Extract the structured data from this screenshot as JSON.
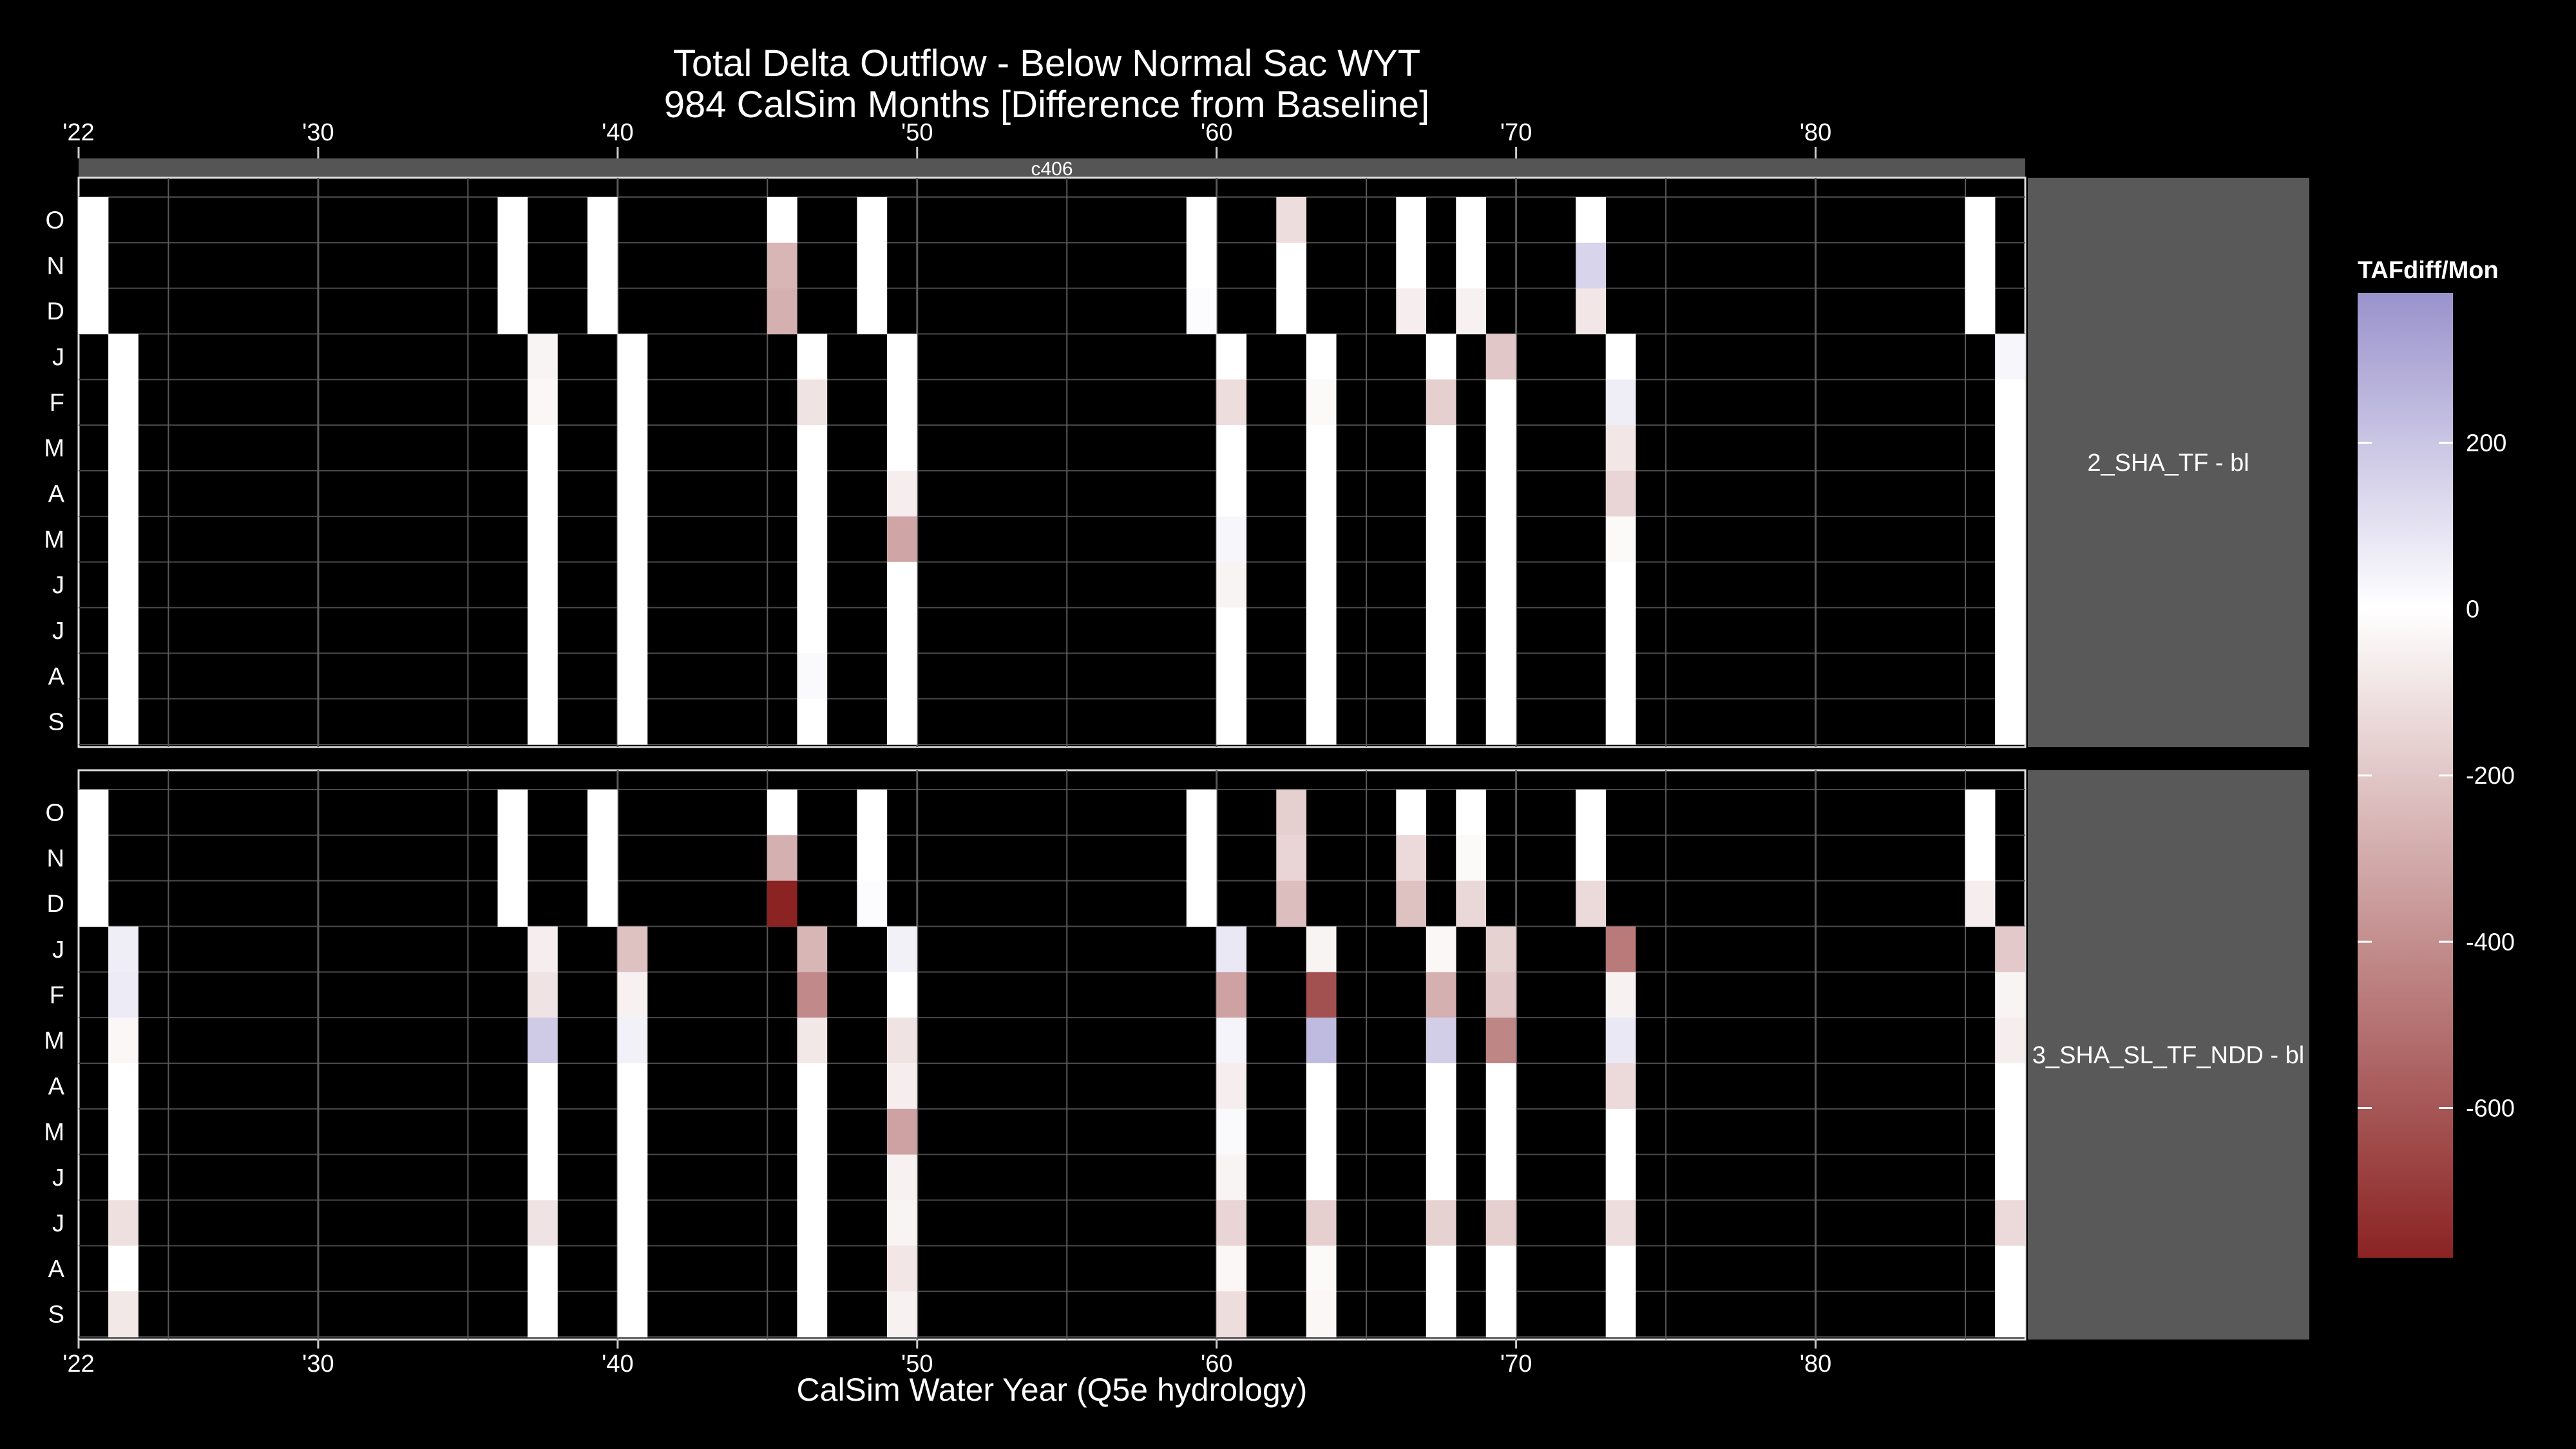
{
  "chart_data": {
    "type": "heatmap",
    "title": "Total Delta Outflow - Below Normal Sac WYT",
    "subtitle": "984 CalSim Months [Difference from Baseline]",
    "xlabel": "CalSim Water Year (Q5e hydrology)",
    "top_strip_label": "c406",
    "x_tick_labels": [
      "'22",
      "'30",
      "'40",
      "'50",
      "'60",
      "'70",
      "'80"
    ],
    "x_tick_years": [
      1922,
      1930,
      1940,
      1950,
      1960,
      1970,
      1980
    ],
    "xlim": [
      1922,
      1987
    ],
    "months": [
      "O",
      "N",
      "D",
      "J",
      "F",
      "M",
      "A",
      "M",
      "J",
      "J",
      "A",
      "S"
    ],
    "below_normal_water_years": [
      1923,
      1937,
      1940,
      1946,
      1949,
      1960,
      1963,
      1967,
      1969,
      1973,
      1986
    ],
    "grid": true,
    "legend": {
      "title": "TAFdiff/Mon",
      "position": "right",
      "ticks": [
        200,
        0,
        -200,
        -400,
        -600
      ],
      "range": [
        -780,
        380
      ],
      "colors": {
        "high": "#9a92cc",
        "mid": "#ffffff",
        "low": "#8b2323"
      }
    },
    "panels": [
      {
        "label": "2_SHA_TF - bl",
        "values": {
          "1923": [
            0,
            0,
            0,
            0,
            0,
            0,
            0,
            0,
            0,
            0,
            0,
            0
          ],
          "1937": [
            0,
            0,
            0,
            -40,
            -30,
            0,
            0,
            0,
            0,
            0,
            0,
            0
          ],
          "1940": [
            0,
            0,
            0,
            0,
            0,
            0,
            0,
            0,
            0,
            0,
            0,
            0
          ],
          "1946": [
            0,
            -260,
            -280,
            0,
            -100,
            0,
            0,
            0,
            0,
            0,
            20,
            0
          ],
          "1949": [
            0,
            0,
            0,
            0,
            0,
            0,
            -60,
            -320,
            0,
            0,
            0,
            0
          ],
          "1960": [
            0,
            0,
            10,
            0,
            -120,
            0,
            0,
            30,
            -40,
            0,
            0,
            0
          ],
          "1963": [
            -120,
            0,
            0,
            0,
            -20,
            0,
            0,
            0,
            0,
            0,
            0,
            0
          ],
          "1967": [
            0,
            0,
            -60,
            0,
            -170,
            0,
            0,
            0,
            0,
            0,
            0,
            0
          ],
          "1969": [
            0,
            0,
            -50,
            -200,
            0,
            0,
            0,
            0,
            0,
            0,
            0,
            0
          ],
          "1973": [
            0,
            150,
            -90,
            0,
            60,
            -90,
            -150,
            -20,
            0,
            0,
            0,
            0
          ],
          "1986": [
            0,
            0,
            0,
            30,
            0,
            0,
            0,
            0,
            0,
            0,
            0,
            0
          ]
        }
      },
      {
        "label": "3_SHA_SL_TF_NDD - bl",
        "values": {
          "1923": [
            0,
            0,
            0,
            60,
            70,
            -30,
            0,
            0,
            0,
            -110,
            0,
            -80
          ],
          "1937": [
            0,
            0,
            0,
            -60,
            -100,
            180,
            0,
            0,
            0,
            -100,
            0,
            0
          ],
          "1940": [
            0,
            0,
            0,
            -220,
            -50,
            50,
            0,
            0,
            0,
            0,
            0,
            0
          ],
          "1946": [
            0,
            -280,
            -780,
            -260,
            -420,
            -80,
            0,
            0,
            0,
            0,
            0,
            0
          ],
          "1949": [
            0,
            0,
            10,
            50,
            0,
            -100,
            -60,
            -330,
            -50,
            -40,
            -90,
            -50
          ],
          "1960": [
            0,
            0,
            0,
            80,
            -330,
            40,
            -60,
            20,
            -40,
            -150,
            -30,
            -120
          ],
          "1963": [
            -170,
            -150,
            -230,
            -40,
            -620,
            240,
            0,
            0,
            0,
            -170,
            -20,
            -30
          ],
          "1967": [
            0,
            -130,
            -220,
            -30,
            -280,
            170,
            0,
            0,
            0,
            -160,
            0,
            0
          ],
          "1969": [
            0,
            -20,
            -140,
            -160,
            -200,
            -430,
            0,
            0,
            0,
            -170,
            0,
            0
          ],
          "1973": [
            0,
            0,
            -130,
            -470,
            -50,
            80,
            -130,
            0,
            0,
            -120,
            0,
            0
          ],
          "1986": [
            0,
            0,
            -60,
            -190,
            -40,
            -60,
            0,
            0,
            0,
            -130,
            0,
            0
          ]
        }
      }
    ]
  }
}
